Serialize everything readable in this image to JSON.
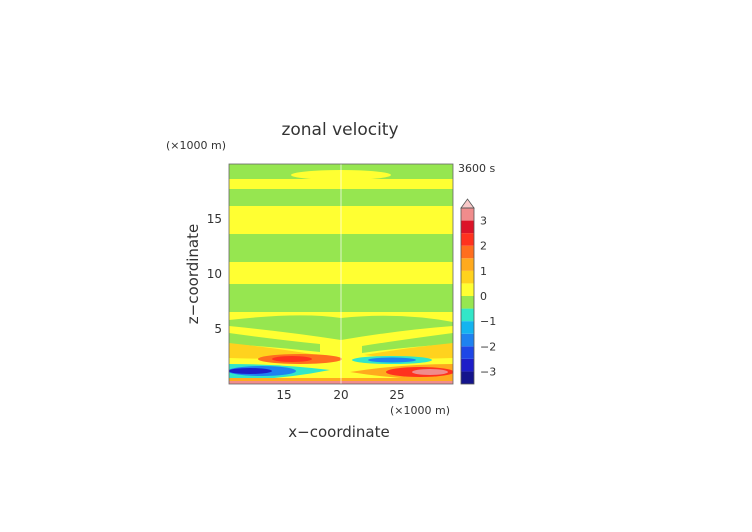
{
  "chart_data": {
    "type": "heatmap",
    "title": "zonal velocity",
    "xlabel": "x−coordinate",
    "ylabel": "z−coordinate",
    "x_unit": "(×1000 m)",
    "y_unit": "(×1000 m)",
    "time_label": "3600 s",
    "xlim": [
      10,
      30
    ],
    "ylim": [
      0,
      20
    ],
    "x_ticks": [
      "15",
      "20",
      "25"
    ],
    "y_ticks": [
      "5",
      "10",
      "15"
    ],
    "colorbar": {
      "range": [
        -3.5,
        3.5
      ],
      "tick_labels": [
        "−3",
        "−2",
        "−1",
        "0",
        "1",
        "2",
        "3"
      ],
      "levels": [
        {
          "lo": -3.5,
          "hi": -3.0,
          "color": "#14148c"
        },
        {
          "lo": -3.0,
          "hi": -2.5,
          "color": "#1e1ec8"
        },
        {
          "lo": -2.5,
          "hi": -2.0,
          "color": "#1e46e6"
        },
        {
          "lo": -2.0,
          "hi": -1.5,
          "color": "#1e82f0"
        },
        {
          "lo": -1.5,
          "hi": -1.0,
          "color": "#14b4f0"
        },
        {
          "lo": -1.0,
          "hi": -0.5,
          "color": "#32e6c8"
        },
        {
          "lo": -0.5,
          "hi": 0.0,
          "color": "#96e650"
        },
        {
          "lo": 0.0,
          "hi": 0.5,
          "color": "#ffff32"
        },
        {
          "lo": 0.5,
          "hi": 1.0,
          "color": "#ffd21e"
        },
        {
          "lo": 1.0,
          "hi": 1.5,
          "color": "#ffaa1e"
        },
        {
          "lo": 1.5,
          "hi": 2.0,
          "color": "#ff6e1e"
        },
        {
          "lo": 2.0,
          "hi": 2.5,
          "color": "#ff321e"
        },
        {
          "lo": 2.5,
          "hi": 3.0,
          "color": "#dc1428"
        },
        {
          "lo": 3.0,
          "hi": 3.5,
          "color": "#f08c8c"
        }
      ],
      "over_color": "#f8c8c8"
    }
  }
}
